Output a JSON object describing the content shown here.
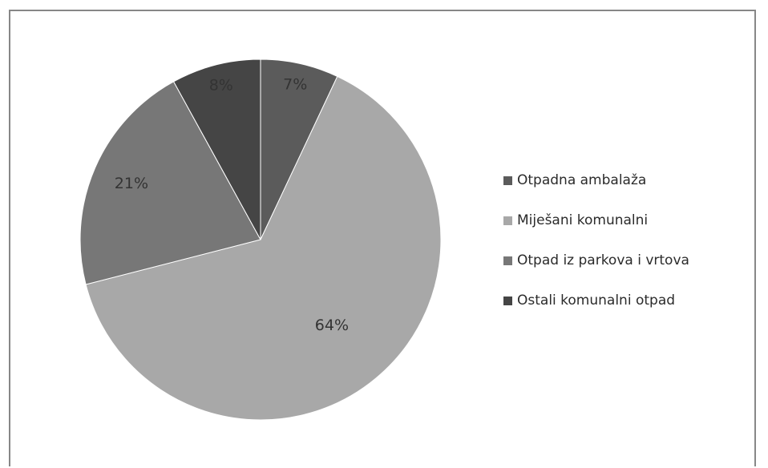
{
  "chart_data": {
    "type": "pie",
    "title": "",
    "slices": [
      {
        "name": "Otpadna ambalaža",
        "value": 7,
        "label": "7%",
        "color": "#5b5b5b"
      },
      {
        "name": "Miješani komunalni",
        "value": 64,
        "label": "64%",
        "color": "#a8a8a8"
      },
      {
        "name": "Otpad iz parkova i vrtova",
        "value": 21,
        "label": "21%",
        "color": "#777777"
      },
      {
        "name": "Ostali komunalni otpad",
        "value": 8,
        "label": "8%",
        "color": "#454545"
      }
    ],
    "start": "12 o'clock",
    "direction": "clockwise",
    "legend_position": "right"
  }
}
